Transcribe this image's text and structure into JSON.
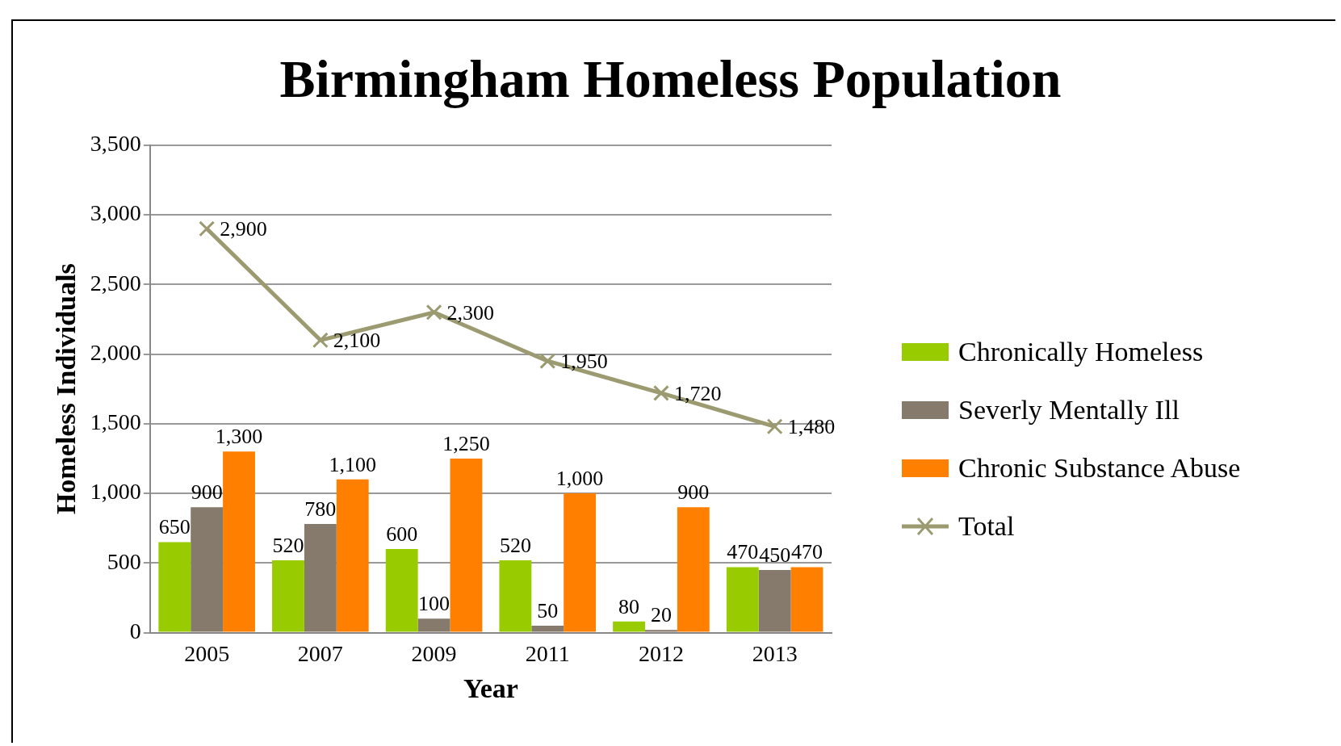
{
  "chart_data": {
    "type": "bar",
    "title": "Birmingham Homeless Population",
    "xlabel": "Year",
    "ylabel": "Homeless Individuals",
    "categories": [
      "2005",
      "2007",
      "2009",
      "2011",
      "2012",
      "2013"
    ],
    "series": [
      {
        "name": "Chronically Homeless",
        "color": "#99cc00",
        "values": [
          650,
          520,
          600,
          520,
          80,
          470
        ],
        "value_labels": [
          "650",
          "520",
          "600",
          "520",
          "80",
          "470"
        ]
      },
      {
        "name": "Severly Mentally Ill",
        "color": "#857a6b",
        "values": [
          900,
          780,
          100,
          50,
          20,
          450
        ],
        "value_labels": [
          "900",
          "780",
          "100",
          "50",
          "20",
          "450"
        ]
      },
      {
        "name": "Chronic Substance Abuse",
        "color": "#ff8000",
        "values": [
          1300,
          1100,
          1250,
          1000,
          900,
          470
        ],
        "value_labels": [
          "1,300",
          "1,100",
          "1,250",
          "1,000",
          "900",
          "470"
        ]
      },
      {
        "name": "Total",
        "type": "line",
        "color": "#9c9a70",
        "marker": "cross",
        "values": [
          2900,
          2100,
          2300,
          1950,
          1720,
          1480
        ],
        "value_labels": [
          "2,900",
          "2,100",
          "2,300",
          "1,950",
          "1,720",
          "1,480"
        ]
      }
    ],
    "ylim": [
      0,
      3500
    ],
    "yticks": [
      {
        "value": 0,
        "label": "0"
      },
      {
        "value": 500,
        "label": "500"
      },
      {
        "value": 1000,
        "label": "1,000"
      },
      {
        "value": 1500,
        "label": "1,500"
      },
      {
        "value": 2000,
        "label": "2,000"
      },
      {
        "value": 2500,
        "label": "2,500"
      },
      {
        "value": 3000,
        "label": "3,000"
      },
      {
        "value": 3500,
        "label": "3,500"
      }
    ],
    "grid": "y",
    "legend": "right"
  }
}
